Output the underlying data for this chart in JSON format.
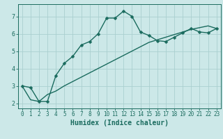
{
  "xlabel": "Humidex (Indice chaleur)",
  "ylabel": "",
  "background_color": "#cce8e8",
  "line_color": "#1a6b5e",
  "grid_color": "#aacfcf",
  "x_data": [
    0,
    1,
    2,
    3,
    4,
    5,
    6,
    7,
    8,
    9,
    10,
    11,
    12,
    13,
    14,
    15,
    16,
    17,
    18,
    19,
    20,
    21,
    22,
    23
  ],
  "y_curve": [
    3.0,
    2.9,
    2.1,
    2.1,
    3.6,
    4.3,
    4.7,
    5.35,
    5.55,
    6.0,
    6.9,
    6.9,
    7.3,
    7.0,
    6.1,
    5.9,
    5.6,
    5.55,
    5.8,
    6.05,
    6.3,
    6.1,
    6.05,
    6.3
  ],
  "y_linear": [
    3.0,
    2.2,
    2.1,
    2.5,
    2.7,
    3.0,
    3.25,
    3.5,
    3.75,
    4.0,
    4.25,
    4.5,
    4.75,
    5.0,
    5.25,
    5.5,
    5.65,
    5.8,
    5.95,
    6.1,
    6.25,
    6.35,
    6.45,
    6.3
  ],
  "xlim": [
    0,
    23
  ],
  "ylim": [
    1.7,
    7.7
  ],
  "yticks": [
    2,
    3,
    4,
    5,
    6,
    7
  ],
  "xticks": [
    0,
    1,
    2,
    3,
    4,
    5,
    6,
    7,
    8,
    9,
    10,
    11,
    12,
    13,
    14,
    15,
    16,
    17,
    18,
    19,
    20,
    21,
    22,
    23
  ],
  "tick_fontsize": 5.5,
  "xlabel_fontsize": 7.0,
  "marker_size": 2.5,
  "linewidth": 1.0
}
